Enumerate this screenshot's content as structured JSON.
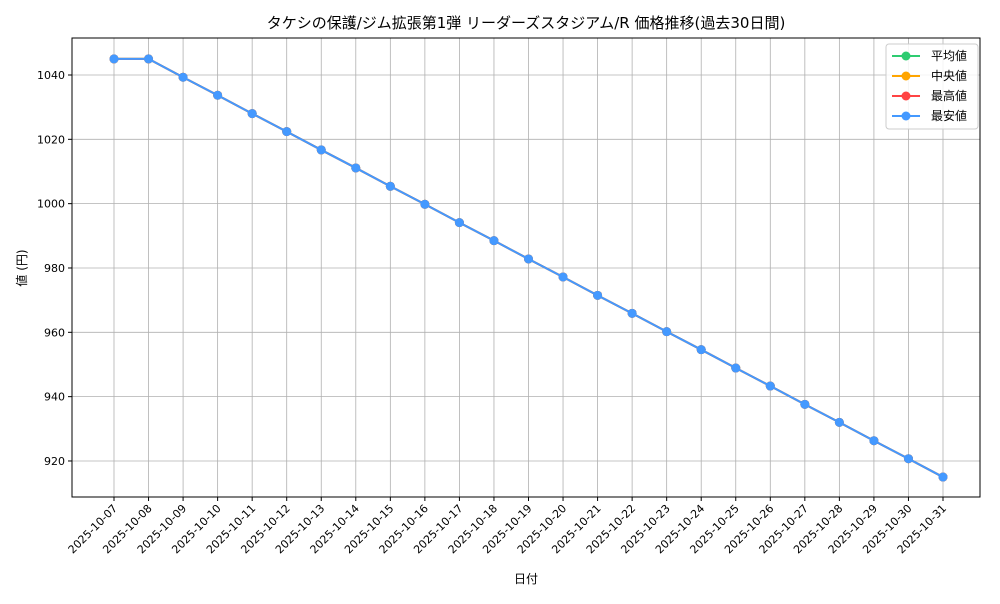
{
  "chart_data": {
    "type": "line",
    "title": "タケシの保護/ジム拡張第1弾 リーダーズスタジアム/R 価格推移(過去30日間)",
    "xlabel": "日付",
    "ylabel": "値 (円)",
    "ylim": [
      908.8,
      1051.5
    ],
    "yticks": [
      920,
      940,
      960,
      980,
      1000,
      1020,
      1040
    ],
    "grid": true,
    "legend_position": "top-right",
    "x": [
      "2025-10-07",
      "2025-10-08",
      "2025-10-09",
      "2025-10-10",
      "2025-10-11",
      "2025-10-12",
      "2025-10-13",
      "2025-10-14",
      "2025-10-15",
      "2025-10-16",
      "2025-10-17",
      "2025-10-18",
      "2025-10-19",
      "2025-10-20",
      "2025-10-21",
      "2025-10-22",
      "2025-10-23",
      "2025-10-24",
      "2025-10-25",
      "2025-10-26",
      "2025-10-27",
      "2025-10-28",
      "2025-10-29",
      "2025-10-30",
      "2025-10-31"
    ],
    "series": [
      {
        "name": "平均値",
        "color": "#2ecc71",
        "values": [
          1045,
          1045,
          1039.3,
          1033.7,
          1028.0,
          1022.4,
          1016.7,
          1011.1,
          1005.4,
          999.8,
          994.1,
          988.5,
          982.8,
          977.2,
          971.5,
          965.9,
          960.2,
          954.6,
          948.9,
          943.3,
          937.6,
          932.0,
          926.3,
          920.7,
          915
        ]
      },
      {
        "name": "中央値",
        "color": "#ffa500",
        "values": [
          1045,
          1045,
          1039.3,
          1033.7,
          1028.0,
          1022.4,
          1016.7,
          1011.1,
          1005.4,
          999.8,
          994.1,
          988.5,
          982.8,
          977.2,
          971.5,
          965.9,
          960.2,
          954.6,
          948.9,
          943.3,
          937.6,
          932.0,
          926.3,
          920.7,
          915
        ]
      },
      {
        "name": "最高値",
        "color": "#ff4444",
        "values": [
          1045,
          1045,
          1039.3,
          1033.7,
          1028.0,
          1022.4,
          1016.7,
          1011.1,
          1005.4,
          999.8,
          994.1,
          988.5,
          982.8,
          977.2,
          971.5,
          965.9,
          960.2,
          954.6,
          948.9,
          943.3,
          937.6,
          932.0,
          926.3,
          920.7,
          915
        ]
      },
      {
        "name": "最安値",
        "color": "#4499ff",
        "values": [
          1045,
          1045,
          1039.3,
          1033.7,
          1028.0,
          1022.4,
          1016.7,
          1011.1,
          1005.4,
          999.8,
          994.1,
          988.5,
          982.8,
          977.2,
          971.5,
          965.9,
          960.2,
          954.6,
          948.9,
          943.3,
          937.6,
          932.0,
          926.3,
          920.7,
          915
        ]
      }
    ]
  }
}
